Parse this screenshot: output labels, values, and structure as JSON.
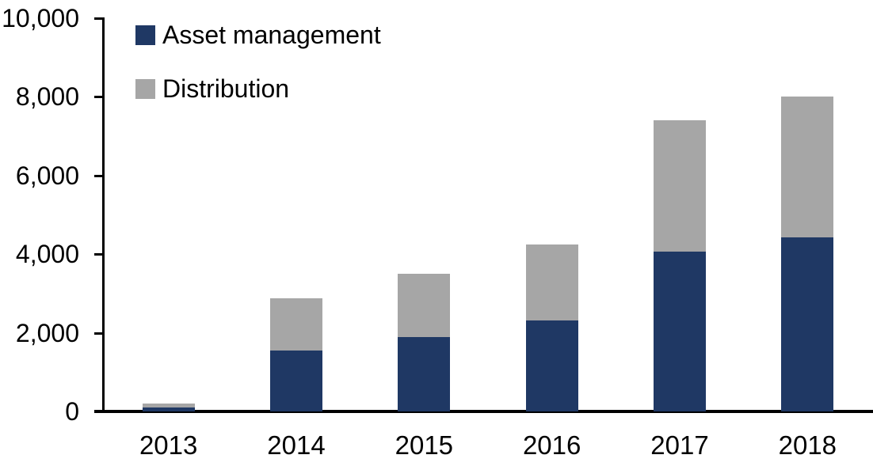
{
  "chart_data": {
    "type": "bar",
    "stacked": true,
    "title": "",
    "xlabel": "",
    "ylabel": "",
    "categories": [
      "2013",
      "2014",
      "2015",
      "2016",
      "2017",
      "2018"
    ],
    "series": [
      {
        "name": "Asset management",
        "color": "#1F3864",
        "values": [
          100,
          1550,
          1900,
          2310,
          4060,
          4430
        ]
      },
      {
        "name": "Distribution",
        "color": "#A6A6A6",
        "values": [
          100,
          1320,
          1600,
          1940,
          3340,
          3570
        ]
      }
    ],
    "totals": [
      200,
      2870,
      3500,
      4250,
      7400,
      8000
    ],
    "ylim": [
      0,
      10000
    ],
    "yticks": [
      {
        "value": 0,
        "label": "0"
      },
      {
        "value": 2000,
        "label": "2,000"
      },
      {
        "value": 4000,
        "label": "4,000"
      },
      {
        "value": 6000,
        "label": "6,000"
      },
      {
        "value": 8000,
        "label": "8,000"
      },
      {
        "value": 10000,
        "label": "10,000"
      }
    ],
    "legend_position": "top-left",
    "grid": false,
    "axis_color": "#000000",
    "text_color": "#000000",
    "background_color": "#FFFFFF"
  }
}
